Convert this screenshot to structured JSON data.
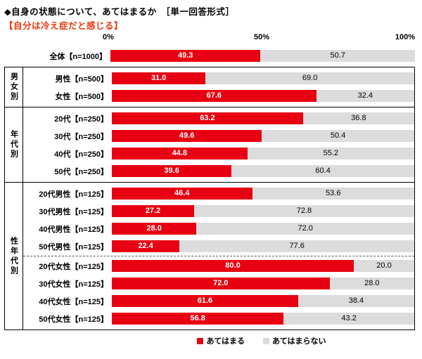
{
  "header": {
    "title": "◆自身の状態について、あてはまるか　［単一回答形式］",
    "subtitle": "【自分は冷え症だと感じる】",
    "subtitle_color": "#e8380d"
  },
  "axis": {
    "ticks": [
      "0%",
      "50%",
      "100%"
    ]
  },
  "legend": [
    {
      "label": "あてはまる",
      "color": "#e60012"
    },
    {
      "label": "あてはまらない",
      "color": "#dcdcdc"
    }
  ],
  "chart_data": {
    "type": "bar",
    "orientation": "horizontal",
    "stacked": true,
    "xlim": [
      0,
      100
    ],
    "title": "自分は冷え症だと感じる",
    "series_names": [
      "あてはまる",
      "あてはまらない"
    ],
    "colors": [
      "#e60012",
      "#dcdcdc"
    ],
    "groups": [
      {
        "name": "",
        "rows": [
          {
            "label": "全体【n=1000】",
            "values": [
              49.3,
              50.7
            ]
          }
        ]
      },
      {
        "name": "男女別",
        "rows": [
          {
            "label": "男性【n=500】",
            "values": [
              31.0,
              69.0
            ]
          },
          {
            "label": "女性【n=500】",
            "values": [
              67.6,
              32.4
            ]
          }
        ]
      },
      {
        "name": "年代別",
        "rows": [
          {
            "label": "20代【n=250】",
            "values": [
              63.2,
              36.8
            ]
          },
          {
            "label": "30代【n=250】",
            "values": [
              49.6,
              50.4
            ]
          },
          {
            "label": "40代【n=250】",
            "values": [
              44.8,
              55.2
            ]
          },
          {
            "label": "50代【n=250】",
            "values": [
              39.6,
              60.4
            ]
          }
        ]
      },
      {
        "name": "性年代別",
        "divider_after_row": 3,
        "rows": [
          {
            "label": "20代男性【n=125】",
            "values": [
              46.4,
              53.6
            ]
          },
          {
            "label": "30代男性【n=125】",
            "values": [
              27.2,
              72.8
            ]
          },
          {
            "label": "40代男性【n=125】",
            "values": [
              28.0,
              72.0
            ]
          },
          {
            "label": "50代男性【n=125】",
            "values": [
              22.4,
              77.6
            ]
          },
          {
            "label": "20代女性【n=125】",
            "values": [
              80.0,
              20.0
            ]
          },
          {
            "label": "30代女性【n=125】",
            "values": [
              72.0,
              28.0
            ]
          },
          {
            "label": "40代女性【n=125】",
            "values": [
              61.6,
              38.4
            ]
          },
          {
            "label": "50代女性【n=125】",
            "values": [
              56.8,
              43.2
            ]
          }
        ]
      }
    ]
  }
}
